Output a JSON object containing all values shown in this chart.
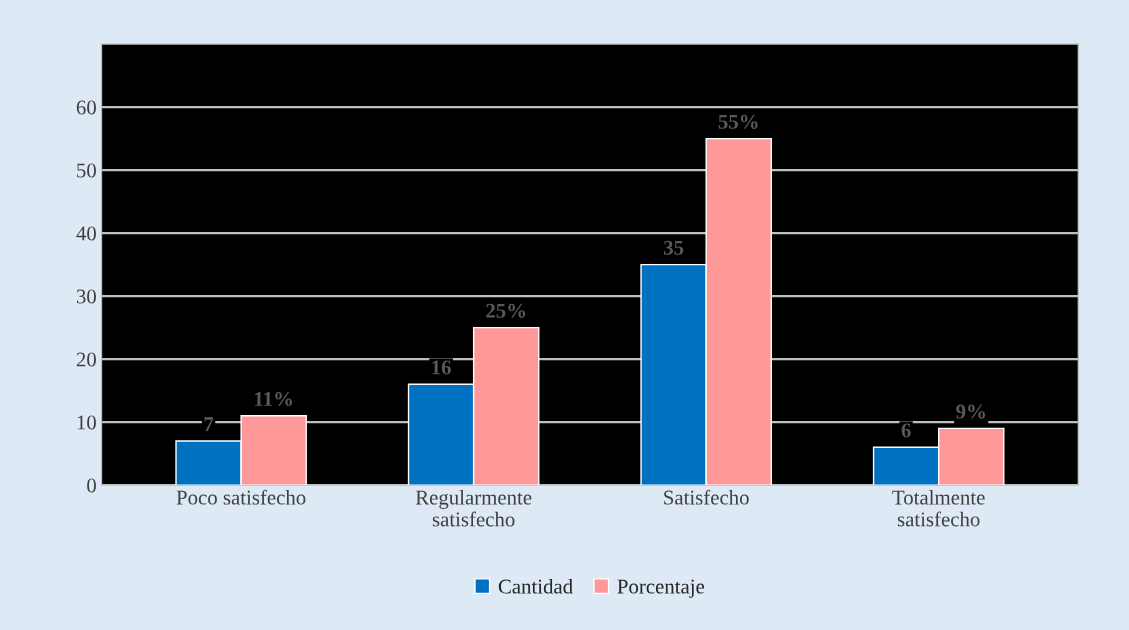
{
  "chart_data": {
    "type": "bar",
    "categories": [
      "Poco satisfecho",
      "Regularmente\nsatisfecho",
      "Satisfecho",
      "Totalmente\nsatisfecho"
    ],
    "series": [
      {
        "name": "Cantidad",
        "color": "#0070c0",
        "values": [
          7,
          16,
          35,
          6
        ],
        "value_labels": [
          "7",
          "16",
          "35",
          "6"
        ]
      },
      {
        "name": "Porcentaje",
        "color": "#ff9999",
        "values": [
          11,
          25,
          55,
          9
        ],
        "value_labels": [
          "11%",
          "25%",
          "55%",
          "9%"
        ]
      }
    ],
    "ylim": [
      0,
      70
    ],
    "yticks": [
      0,
      10,
      20,
      30,
      40,
      50,
      60
    ],
    "grid": "y",
    "legend": "bottom"
  }
}
